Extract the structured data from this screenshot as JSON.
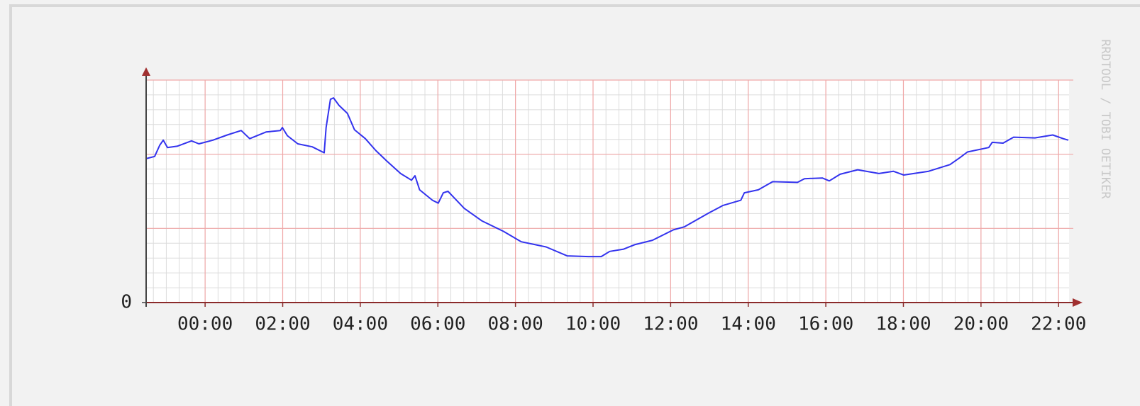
{
  "chart_data": {
    "type": "line",
    "watermark": "RRDTOOL / TOBI OETIKER",
    "xlim": [
      -1.52,
      22.27
    ],
    "xticks": [
      {
        "value": 0,
        "label": "00:00"
      },
      {
        "value": 2,
        "label": "02:00"
      },
      {
        "value": 4,
        "label": "04:00"
      },
      {
        "value": 6,
        "label": "06:00"
      },
      {
        "value": 8,
        "label": "08:00"
      },
      {
        "value": 10,
        "label": "10:00"
      },
      {
        "value": 12,
        "label": "12:00"
      },
      {
        "value": 14,
        "label": "14:00"
      },
      {
        "value": 16,
        "label": "16:00"
      },
      {
        "value": 18,
        "label": "18:00"
      },
      {
        "value": 20,
        "label": "20:00"
      },
      {
        "value": 22,
        "label": "22:00"
      }
    ],
    "ylim": [
      0,
      3
    ],
    "yticks": [
      0
    ],
    "ygrid": [
      1,
      2,
      3
    ],
    "grid": true,
    "series": [
      {
        "color": "#3333ee",
        "x": [
          -1.52,
          -1.3,
          -1.17,
          -1.08,
          -0.97,
          -0.71,
          -0.35,
          -0.16,
          0.2,
          0.57,
          0.93,
          1.15,
          1.57,
          1.94,
          1.99,
          2.12,
          2.39,
          2.76,
          3.07,
          3.12,
          3.23,
          3.31,
          3.45,
          3.67,
          3.85,
          4.13,
          4.4,
          4.68,
          5.04,
          5.32,
          5.41,
          5.53,
          5.86,
          6.01,
          6.14,
          6.26,
          6.68,
          7.14,
          7.69,
          8.15,
          8.79,
          9.33,
          9.88,
          10.21,
          10.43,
          10.79,
          11.07,
          11.53,
          12.07,
          12.35,
          12.99,
          13.35,
          13.81,
          13.9,
          14.26,
          14.63,
          15.27,
          15.45,
          15.91,
          16.09,
          16.37,
          16.82,
          17.37,
          17.74,
          18.01,
          18.65,
          19.2,
          19.47,
          19.65,
          20.2,
          20.29,
          20.57,
          20.84,
          21.39,
          21.85,
          22.12,
          22.25
        ],
        "values": [
          1.94,
          1.97,
          2.12,
          2.19,
          2.09,
          2.11,
          2.18,
          2.14,
          2.19,
          2.26,
          2.32,
          2.21,
          2.3,
          2.32,
          2.36,
          2.25,
          2.14,
          2.1,
          2.02,
          2.36,
          2.74,
          2.76,
          2.66,
          2.55,
          2.33,
          2.21,
          2.05,
          1.91,
          1.74,
          1.65,
          1.71,
          1.52,
          1.38,
          1.34,
          1.48,
          1.5,
          1.27,
          1.1,
          0.96,
          0.82,
          0.75,
          0.63,
          0.62,
          0.62,
          0.69,
          0.72,
          0.78,
          0.84,
          0.98,
          1.02,
          1.21,
          1.31,
          1.38,
          1.48,
          1.52,
          1.63,
          1.62,
          1.67,
          1.68,
          1.64,
          1.73,
          1.79,
          1.74,
          1.77,
          1.72,
          1.77,
          1.86,
          1.96,
          2.03,
          2.09,
          2.16,
          2.15,
          2.23,
          2.22,
          2.26,
          2.21,
          2.19
        ]
      }
    ]
  }
}
